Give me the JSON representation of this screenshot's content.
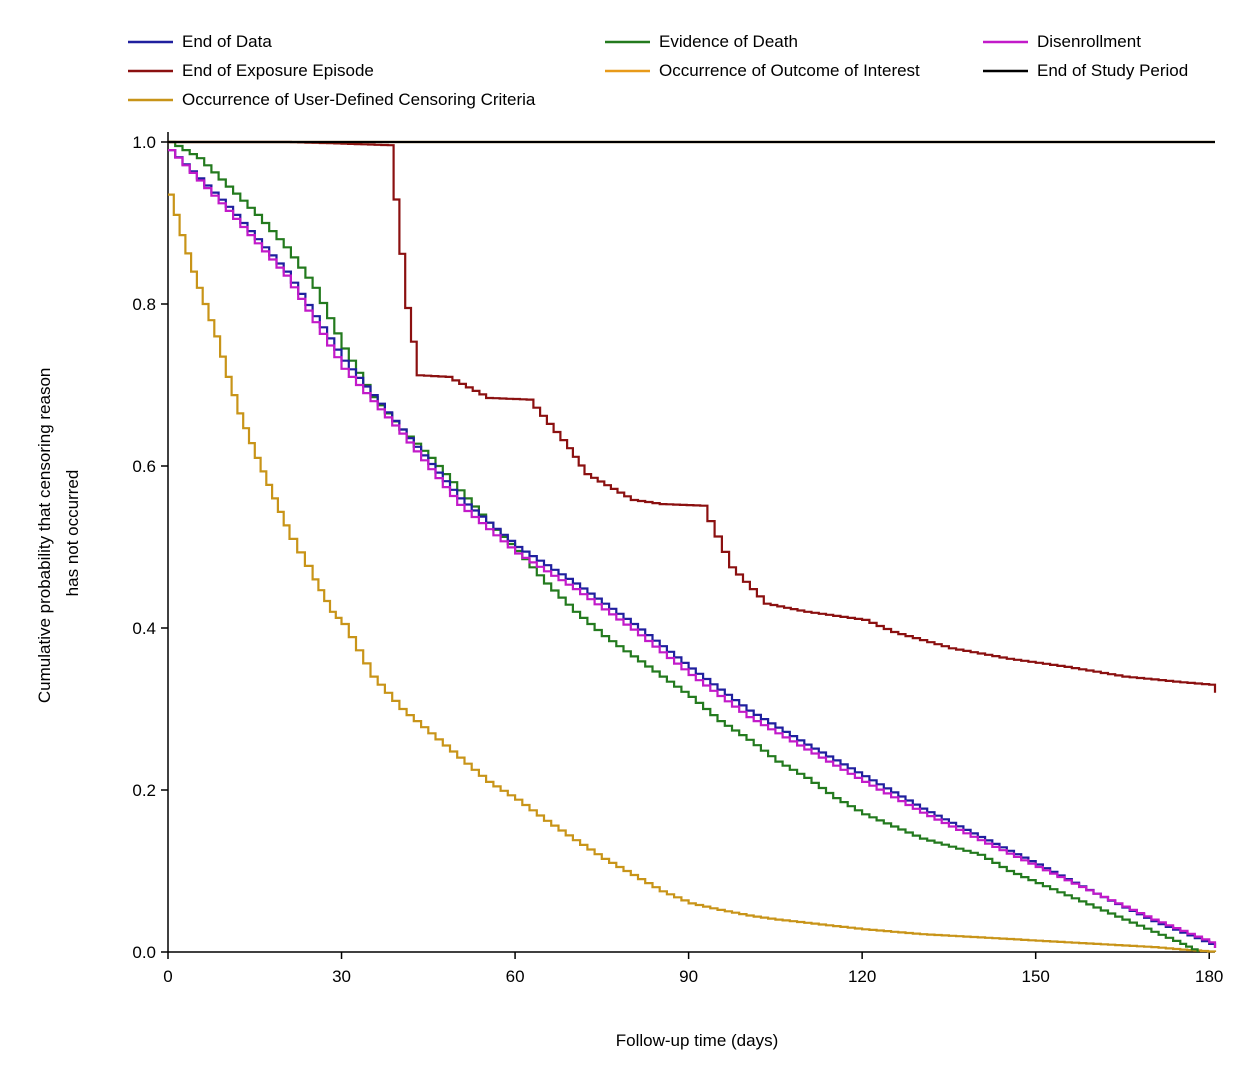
{
  "chart_data": {
    "type": "line",
    "step": true,
    "title": "",
    "xlabel": "Follow-up time (days)",
    "ylabel": [
      "Cumulative probability that censoring reason",
      "has not occurred"
    ],
    "xlim": [
      0,
      181
    ],
    "ylim": [
      0,
      1
    ],
    "xticks": [
      0,
      30,
      60,
      90,
      120,
      150,
      180
    ],
    "yticks": [
      0.0,
      0.2,
      0.4,
      0.6,
      0.8,
      1.0
    ],
    "xtick_labels": [
      "0",
      "30",
      "60",
      "90",
      "120",
      "150",
      "180"
    ],
    "ytick_labels": [
      "0.0",
      "0.2",
      "0.4",
      "0.6",
      "0.8",
      "1.0"
    ],
    "grid": false,
    "legend_position": "top",
    "series": [
      {
        "name": "End of Data",
        "color": "#1f1f9e",
        "points": [
          [
            0,
            0.99
          ],
          [
            10,
            0.92
          ],
          [
            20,
            0.84
          ],
          [
            30,
            0.73
          ],
          [
            40,
            0.645
          ],
          [
            50,
            0.56
          ],
          [
            60,
            0.5
          ],
          [
            70,
            0.455
          ],
          [
            80,
            0.405
          ],
          [
            90,
            0.35
          ],
          [
            100,
            0.298
          ],
          [
            110,
            0.256
          ],
          [
            120,
            0.217
          ],
          [
            130,
            0.177
          ],
          [
            140,
            0.142
          ],
          [
            150,
            0.108
          ],
          [
            160,
            0.072
          ],
          [
            170,
            0.038
          ],
          [
            180,
            0.01
          ],
          [
            181,
            0.005
          ]
        ]
      },
      {
        "name": "End of Exposure Episode",
        "color": "#8b1010",
        "points": [
          [
            0,
            1.0
          ],
          [
            20,
            1.0
          ],
          [
            30,
            0.998
          ],
          [
            38,
            0.996
          ],
          [
            41,
            0.795
          ],
          [
            43,
            0.712
          ],
          [
            48,
            0.71
          ],
          [
            55,
            0.684
          ],
          [
            62,
            0.682
          ],
          [
            69,
            0.622
          ],
          [
            72,
            0.59
          ],
          [
            80,
            0.558
          ],
          [
            85,
            0.553
          ],
          [
            92,
            0.551
          ],
          [
            97,
            0.475
          ],
          [
            103,
            0.43
          ],
          [
            110,
            0.42
          ],
          [
            120,
            0.41
          ],
          [
            125,
            0.395
          ],
          [
            135,
            0.375
          ],
          [
            145,
            0.362
          ],
          [
            155,
            0.352
          ],
          [
            165,
            0.34
          ],
          [
            175,
            0.333
          ],
          [
            180,
            0.33
          ],
          [
            181,
            0.32
          ]
        ]
      },
      {
        "name": "Evidence of Death",
        "color": "#237a1e",
        "points": [
          [
            0,
            1.0
          ],
          [
            5,
            0.98
          ],
          [
            10,
            0.945
          ],
          [
            15,
            0.91
          ],
          [
            20,
            0.87
          ],
          [
            25,
            0.82
          ],
          [
            30,
            0.745
          ],
          [
            35,
            0.685
          ],
          [
            40,
            0.645
          ],
          [
            45,
            0.61
          ],
          [
            50,
            0.57
          ],
          [
            55,
            0.53
          ],
          [
            60,
            0.495
          ],
          [
            65,
            0.455
          ],
          [
            70,
            0.42
          ],
          [
            75,
            0.39
          ],
          [
            80,
            0.365
          ],
          [
            85,
            0.34
          ],
          [
            90,
            0.315
          ],
          [
            95,
            0.285
          ],
          [
            100,
            0.262
          ],
          [
            105,
            0.235
          ],
          [
            110,
            0.215
          ],
          [
            115,
            0.19
          ],
          [
            120,
            0.17
          ],
          [
            125,
            0.155
          ],
          [
            130,
            0.14
          ],
          [
            135,
            0.13
          ],
          [
            140,
            0.12
          ],
          [
            145,
            0.1
          ],
          [
            150,
            0.085
          ],
          [
            155,
            0.07
          ],
          [
            160,
            0.055
          ],
          [
            165,
            0.04
          ],
          [
            170,
            0.025
          ],
          [
            175,
            0.01
          ],
          [
            178,
            0.0
          ]
        ]
      },
      {
        "name": "Occurrence of Outcome of Interest",
        "color": "#e89a1a",
        "points": [
          [
            0,
            1.0
          ],
          [
            181,
            1.0
          ]
        ]
      },
      {
        "name": "Disenrollment",
        "color": "#c21ac9",
        "points": [
          [
            0,
            0.99
          ],
          [
            10,
            0.915
          ],
          [
            20,
            0.835
          ],
          [
            30,
            0.72
          ],
          [
            40,
            0.64
          ],
          [
            50,
            0.552
          ],
          [
            60,
            0.492
          ],
          [
            70,
            0.448
          ],
          [
            80,
            0.398
          ],
          [
            90,
            0.342
          ],
          [
            100,
            0.29
          ],
          [
            110,
            0.25
          ],
          [
            120,
            0.21
          ],
          [
            130,
            0.172
          ],
          [
            140,
            0.138
          ],
          [
            150,
            0.105
          ],
          [
            160,
            0.072
          ],
          [
            170,
            0.04
          ],
          [
            180,
            0.012
          ],
          [
            181,
            0.005
          ]
        ]
      },
      {
        "name": "End of Study Period",
        "color": "#000000",
        "points": [
          [
            0,
            1.0
          ],
          [
            181,
            1.0
          ]
        ]
      },
      {
        "name": "Occurrence of User-Defined Censoring Criteria",
        "color": "#c89418",
        "points": [
          [
            0,
            0.935
          ],
          [
            2,
            0.885
          ],
          [
            4,
            0.84
          ],
          [
            6,
            0.8
          ],
          [
            8,
            0.76
          ],
          [
            10,
            0.71
          ],
          [
            12,
            0.665
          ],
          [
            15,
            0.61
          ],
          [
            18,
            0.56
          ],
          [
            21,
            0.51
          ],
          [
            25,
            0.46
          ],
          [
            28,
            0.42
          ],
          [
            30,
            0.405
          ],
          [
            35,
            0.34
          ],
          [
            40,
            0.3
          ],
          [
            45,
            0.27
          ],
          [
            50,
            0.24
          ],
          [
            55,
            0.21
          ],
          [
            60,
            0.188
          ],
          [
            65,
            0.162
          ],
          [
            70,
            0.138
          ],
          [
            75,
            0.115
          ],
          [
            80,
            0.095
          ],
          [
            85,
            0.075
          ],
          [
            90,
            0.06
          ],
          [
            95,
            0.052
          ],
          [
            100,
            0.045
          ],
          [
            105,
            0.04
          ],
          [
            110,
            0.036
          ],
          [
            115,
            0.032
          ],
          [
            120,
            0.028
          ],
          [
            130,
            0.022
          ],
          [
            140,
            0.018
          ],
          [
            150,
            0.014
          ],
          [
            160,
            0.01
          ],
          [
            170,
            0.006
          ],
          [
            175,
            0.003
          ],
          [
            181,
            0.0
          ]
        ]
      }
    ],
    "legend": [
      {
        "label": "End of Data",
        "color": "#1f1f9e"
      },
      {
        "label": "Evidence of Death",
        "color": "#237a1e"
      },
      {
        "label": "Disenrollment",
        "color": "#c21ac9"
      },
      {
        "label": "End of Exposure Episode",
        "color": "#8b1010"
      },
      {
        "label": "Occurrence of Outcome of Interest",
        "color": "#e89a1a"
      },
      {
        "label": "End of Study Period",
        "color": "#000000"
      },
      {
        "label": "Occurrence of User-Defined Censoring Criteria",
        "color": "#c89418"
      }
    ]
  }
}
